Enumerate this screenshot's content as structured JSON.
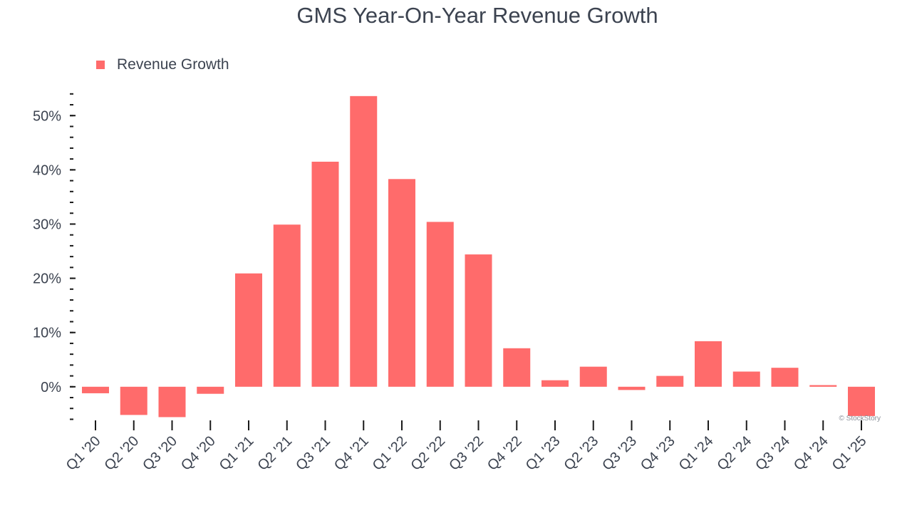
{
  "chart_data": {
    "type": "bar",
    "title": "GMS Year-On-Year Revenue Growth",
    "xlabel": "",
    "ylabel": "",
    "categories": [
      "Q1 '20",
      "Q2 '20",
      "Q3 '20",
      "Q4 '20",
      "Q1 '21",
      "Q2 '21",
      "Q3 '21",
      "Q4 '21",
      "Q1 '22",
      "Q2 '22",
      "Q3 '22",
      "Q4 '22",
      "Q1 '23",
      "Q2 '23",
      "Q3 '23",
      "Q4 '23",
      "Q1 '24",
      "Q2 '24",
      "Q3 '24",
      "Q4 '24",
      "Q1 '25"
    ],
    "series": [
      {
        "name": "Revenue Growth",
        "color": "#ff6b6b",
        "values": [
          -1.2,
          -5.2,
          -5.6,
          -1.3,
          20.9,
          29.9,
          41.5,
          53.6,
          38.3,
          30.4,
          24.4,
          7.1,
          1.2,
          3.7,
          -0.6,
          2.0,
          8.4,
          2.8,
          3.5,
          0.3,
          -5.4
        ]
      }
    ],
    "ylim": [
      -6.2,
      54.5
    ],
    "yticks": [
      0,
      10,
      20,
      30,
      40,
      50
    ],
    "ytick_labels": [
      "0%",
      "10%",
      "20%",
      "30%",
      "40%",
      "50%"
    ],
    "minor_tick_step": 2,
    "legend_position": "top-left",
    "grid": false
  },
  "watermark": "© StockStory"
}
